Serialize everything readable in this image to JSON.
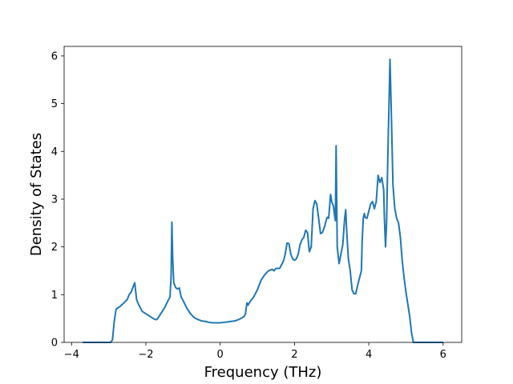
{
  "chart_data": {
    "type": "line",
    "title": "",
    "xlabel": "Frequency (THz)",
    "ylabel": "Density of States",
    "xlim": [
      -4.2,
      6.5
    ],
    "ylim": [
      0,
      6.2
    ],
    "xticks": [
      -4,
      -2,
      0,
      2,
      4,
      6
    ],
    "yticks": [
      0,
      1,
      2,
      3,
      4,
      5,
      6
    ],
    "grid": false,
    "line_color": "#1f77b4",
    "series": [
      {
        "x": [
          -3.7,
          -2.95,
          -2.9,
          -2.85,
          -2.8,
          -2.7,
          -2.6,
          -2.5,
          -2.45,
          -2.4,
          -2.35,
          -2.3,
          -2.25,
          -2.2,
          -2.1,
          -2.0,
          -1.9,
          -1.8,
          -1.75,
          -1.7,
          -1.6,
          -1.5,
          -1.4,
          -1.35,
          -1.32,
          -1.3,
          -1.28,
          -1.25,
          -1.2,
          -1.15,
          -1.1,
          -1.05,
          -1.0,
          -0.9,
          -0.8,
          -0.7,
          -0.6,
          -0.5,
          -0.4,
          -0.3,
          -0.2,
          -0.1,
          0.0,
          0.1,
          0.2,
          0.3,
          0.4,
          0.5,
          0.6,
          0.65,
          0.68,
          0.72,
          0.75,
          0.8,
          0.9,
          1.0,
          1.1,
          1.2,
          1.3,
          1.4,
          1.45,
          1.5,
          1.6,
          1.7,
          1.72,
          1.75,
          1.8,
          1.85,
          1.9,
          1.95,
          2.0,
          2.05,
          2.1,
          2.15,
          2.2,
          2.25,
          2.3,
          2.35,
          2.4,
          2.45,
          2.5,
          2.55,
          2.6,
          2.65,
          2.7,
          2.75,
          2.8,
          2.85,
          2.88,
          2.92,
          2.97,
          3.0,
          3.05,
          3.08,
          3.1,
          3.12,
          3.15,
          3.2,
          3.25,
          3.3,
          3.35,
          3.38,
          3.4,
          3.45,
          3.5,
          3.55,
          3.6,
          3.65,
          3.7,
          3.75,
          3.8,
          3.82,
          3.85,
          3.88,
          3.9,
          3.95,
          4.0,
          4.05,
          4.1,
          4.15,
          4.2,
          4.25,
          4.3,
          4.35,
          4.4,
          4.42,
          4.45,
          4.48,
          4.5,
          4.52,
          4.55,
          4.57,
          4.6,
          4.65,
          4.7,
          4.75,
          4.8,
          4.85,
          4.9,
          4.95,
          5.0,
          5.05,
          5.1,
          5.15,
          5.2,
          5.25,
          5.3,
          6.0
        ],
        "y": [
          0,
          0,
          0.05,
          0.45,
          0.7,
          0.75,
          0.82,
          0.9,
          1.0,
          1.05,
          1.15,
          1.25,
          0.9,
          0.8,
          0.65,
          0.6,
          0.55,
          0.5,
          0.48,
          0.48,
          0.6,
          0.72,
          0.88,
          0.95,
          1.4,
          2.52,
          1.8,
          1.25,
          1.15,
          1.12,
          1.14,
          0.95,
          0.88,
          0.72,
          0.6,
          0.52,
          0.48,
          0.45,
          0.44,
          0.42,
          0.41,
          0.41,
          0.41,
          0.42,
          0.43,
          0.44,
          0.45,
          0.48,
          0.52,
          0.55,
          0.6,
          0.83,
          0.78,
          0.85,
          0.95,
          1.1,
          1.3,
          1.42,
          1.5,
          1.53,
          1.5,
          1.55,
          1.55,
          1.7,
          1.75,
          1.85,
          2.08,
          2.07,
          1.85,
          1.75,
          1.72,
          1.75,
          1.85,
          2.05,
          2.15,
          2.2,
          2.35,
          2.3,
          1.9,
          2.0,
          2.8,
          2.97,
          2.9,
          2.6,
          2.28,
          2.3,
          2.4,
          2.55,
          2.62,
          2.6,
          3.1,
          2.95,
          2.85,
          2.65,
          2.55,
          4.12,
          2.0,
          1.65,
          1.85,
          2.05,
          2.6,
          2.78,
          2.4,
          1.75,
          1.5,
          1.1,
          1.02,
          1.02,
          1.2,
          1.35,
          1.5,
          2.1,
          2.6,
          2.7,
          2.62,
          2.6,
          2.75,
          2.9,
          2.95,
          2.8,
          2.95,
          3.5,
          3.35,
          3.45,
          3.2,
          2.6,
          2.0,
          2.55,
          3.4,
          4.2,
          5.2,
          5.93,
          5.0,
          3.3,
          2.8,
          2.6,
          2.5,
          2.2,
          1.7,
          1.35,
          1.05,
          0.8,
          0.55,
          0.2,
          0,
          0,
          0,
          0
        ]
      }
    ]
  }
}
